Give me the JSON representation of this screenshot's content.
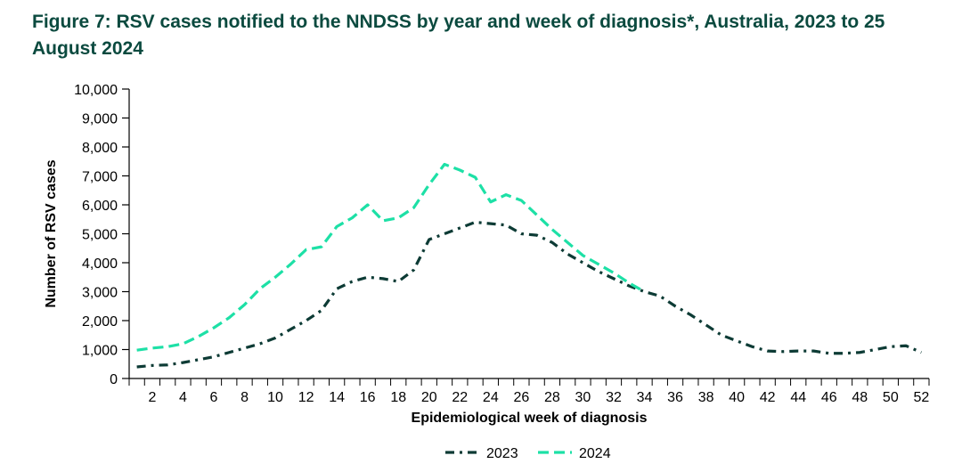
{
  "title": "Figure 7: RSV cases notified to the NNDSS by year and week of diagnosis*, Australia, 2023 to 25 August 2024",
  "colors": {
    "title": "#0b4a3f",
    "series_2023": "#0d3b35",
    "series_2024": "#1de0a6"
  },
  "chart_data": {
    "type": "line",
    "title": "Figure 7: RSV cases notified to the NNDSS by year and week of diagnosis*, Australia, 2023 to 25 August 2024",
    "xlabel": "Epidemiological week of diagnosis",
    "ylabel": "Number of RSV cases",
    "xlim": [
      1,
      53
    ],
    "ylim": [
      0,
      10000
    ],
    "x_ticks": [
      2,
      4,
      6,
      8,
      10,
      12,
      14,
      16,
      18,
      20,
      22,
      24,
      26,
      28,
      30,
      32,
      34,
      36,
      38,
      40,
      42,
      44,
      46,
      48,
      50,
      52
    ],
    "y_ticks": [
      0,
      1000,
      2000,
      3000,
      4000,
      5000,
      6000,
      7000,
      8000,
      9000,
      10000
    ],
    "y_tick_labels": [
      "0",
      "1,000",
      "2,000",
      "3,000",
      "4,000",
      "5,000",
      "6,000",
      "7,000",
      "8,000",
      "9,000",
      "10,000"
    ],
    "grid": false,
    "legend_position": "bottom",
    "series": [
      {
        "name": "2023",
        "line_style": "dash-dot",
        "x": [
          1,
          2,
          3,
          4,
          5,
          6,
          7,
          8,
          9,
          10,
          11,
          12,
          13,
          14,
          15,
          16,
          17,
          18,
          19,
          20,
          21,
          22,
          23,
          24,
          25,
          26,
          27,
          28,
          29,
          30,
          31,
          32,
          33,
          34,
          35,
          36,
          37,
          38,
          39,
          40,
          41,
          42,
          43,
          44,
          45,
          46,
          47,
          48,
          49,
          50,
          51,
          52
        ],
        "values": [
          400,
          450,
          470,
          550,
          650,
          750,
          900,
          1050,
          1200,
          1400,
          1700,
          2000,
          2350,
          3100,
          3350,
          3500,
          3450,
          3350,
          3750,
          4800,
          5000,
          5200,
          5400,
          5350,
          5300,
          5000,
          4950,
          4700,
          4300,
          4000,
          3700,
          3450,
          3200,
          3000,
          2850,
          2500,
          2200,
          1850,
          1500,
          1300,
          1100,
          950,
          930,
          950,
          950,
          870,
          870,
          900,
          1000,
          1100,
          1130,
          900
        ]
      },
      {
        "name": "2024",
        "line_style": "dashed",
        "x": [
          1,
          2,
          3,
          4,
          5,
          6,
          7,
          8,
          9,
          10,
          11,
          12,
          13,
          14,
          15,
          16,
          17,
          18,
          19,
          20,
          21,
          22,
          23,
          24,
          25,
          26,
          27,
          28,
          29,
          30,
          31,
          32,
          33,
          34
        ],
        "values": [
          980,
          1050,
          1100,
          1200,
          1450,
          1750,
          2100,
          2550,
          3100,
          3500,
          3950,
          4450,
          4550,
          5250,
          5550,
          6000,
          5450,
          5550,
          5900,
          6700,
          7400,
          7200,
          6950,
          6100,
          6350,
          6150,
          5650,
          5150,
          4700,
          4250,
          3950,
          3650,
          3300,
          3000
        ]
      }
    ]
  }
}
